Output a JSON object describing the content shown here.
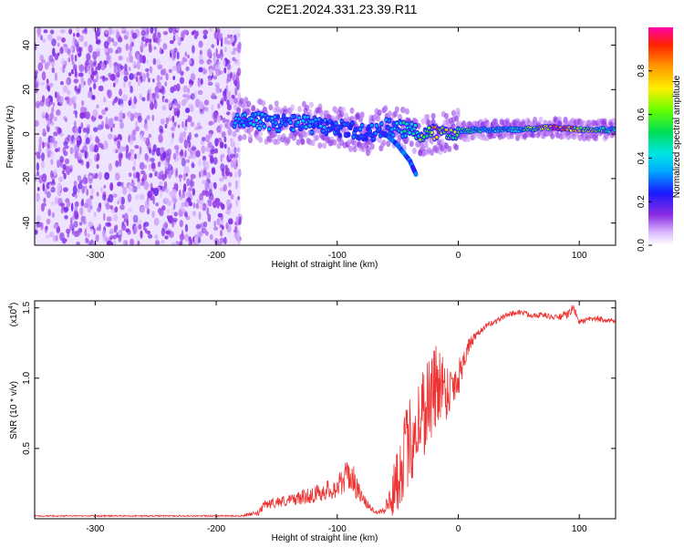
{
  "title": "C2E1.2024.331.23.39.R11",
  "chart_data": [
    {
      "type": "heatmap",
      "xlabel": "Height of straight line (km)",
      "ylabel": "Frequency (Hz)",
      "xlim": [
        -350,
        130
      ],
      "ylim": [
        -50,
        48
      ],
      "xticks": [
        -300,
        -200,
        -100,
        0,
        100
      ],
      "yticks": [
        -40,
        -20,
        0,
        20,
        40
      ],
      "xtick_labels": [
        "-300",
        "-200",
        "-100",
        "0",
        "100"
      ],
      "ytick_labels": [
        "-40",
        "-20",
        "0",
        "20",
        "40"
      ],
      "colorbar": {
        "label": "Normalized spectral amplitude",
        "range": [
          0.0,
          1.0
        ],
        "ticks": [
          0.0,
          0.2,
          0.4,
          0.6,
          0.8
        ],
        "tick_labels": [
          "0.0",
          "0.2",
          "0.4",
          "0.6",
          "0.8"
        ]
      },
      "noise_region": {
        "x": [
          -350,
          -180
        ],
        "y": [
          -50,
          48
        ],
        "amplitude": 0.15
      },
      "ridge": [
        {
          "x": -185,
          "y": 7,
          "amp": 0.35
        },
        {
          "x": -170,
          "y": 6,
          "amp": 0.4
        },
        {
          "x": -150,
          "y": 5,
          "amp": 0.35
        },
        {
          "x": -130,
          "y": 5,
          "amp": 0.35
        },
        {
          "x": -110,
          "y": 3,
          "amp": 0.35
        },
        {
          "x": -90,
          "y": 2,
          "amp": 0.3
        },
        {
          "x": -75,
          "y": 0,
          "amp": 0.3
        },
        {
          "x": -60,
          "y": 3,
          "amp": 0.35
        },
        {
          "x": -45,
          "y": 2,
          "amp": 0.45
        },
        {
          "x": -30,
          "y": 0,
          "amp": 0.6
        },
        {
          "x": -15,
          "y": 1,
          "amp": 0.85
        },
        {
          "x": 0,
          "y": 1.5,
          "amp": 0.55
        },
        {
          "x": 20,
          "y": 2,
          "amp": 0.45
        },
        {
          "x": 50,
          "y": 2,
          "amp": 0.45
        },
        {
          "x": 80,
          "y": 3,
          "amp": 0.9
        },
        {
          "x": 100,
          "y": 2,
          "amp": 0.8
        },
        {
          "x": 130,
          "y": 2,
          "amp": 0.45
        }
      ],
      "branch": [
        {
          "x": -60,
          "y": 0
        },
        {
          "x": -50,
          "y": -5
        },
        {
          "x": -40,
          "y": -12
        },
        {
          "x": -35,
          "y": -18
        }
      ]
    },
    {
      "type": "line",
      "xlabel": "Height of straight line (km)",
      "ylabel": "SNR (10 * v/v)",
      "y_multiplier": "(x10",
      "y_multiplier_exp": "4",
      "y_multiplier_close": ")",
      "xlim": [
        -350,
        130
      ],
      "ylim": [
        0,
        1.55
      ],
      "xticks": [
        -300,
        -200,
        -100,
        0,
        100
      ],
      "yticks": [
        0.5,
        1.0,
        1.5
      ],
      "xtick_labels": [
        "-300",
        "-200",
        "-100",
        "0",
        "100"
      ],
      "ytick_labels": [
        "0.5",
        "1.0",
        "1.5"
      ],
      "series": [
        {
          "color": "#ee3333",
          "x": [
            -350,
            -250,
            -180,
            -165,
            -160,
            -150,
            -140,
            -130,
            -120,
            -110,
            -100,
            -95,
            -90,
            -85,
            -80,
            -75,
            -70,
            -65,
            -60,
            -55,
            -50,
            -45,
            -40,
            -35,
            -30,
            -25,
            -20,
            -15,
            -10,
            -5,
            0,
            5,
            10,
            15,
            20,
            25,
            30,
            40,
            50,
            60,
            70,
            80,
            90,
            95,
            100,
            110,
            120,
            130
          ],
          "y": [
            0.02,
            0.02,
            0.02,
            0.04,
            0.1,
            0.12,
            0.13,
            0.15,
            0.17,
            0.2,
            0.22,
            0.28,
            0.32,
            0.25,
            0.15,
            0.1,
            0.06,
            0.05,
            0.08,
            0.15,
            0.3,
            0.45,
            0.55,
            0.65,
            0.75,
            0.85,
            0.9,
            1.0,
            0.9,
            0.95,
            1.0,
            1.15,
            1.25,
            1.3,
            1.35,
            1.38,
            1.4,
            1.45,
            1.47,
            1.45,
            1.45,
            1.43,
            1.45,
            1.5,
            1.4,
            1.42,
            1.42,
            1.4
          ],
          "noise": [
            0.005,
            0.005,
            0.005,
            0.02,
            0.03,
            0.04,
            0.04,
            0.05,
            0.06,
            0.07,
            0.08,
            0.1,
            0.12,
            0.1,
            0.05,
            0.03,
            0.02,
            0.02,
            0.05,
            0.15,
            0.25,
            0.3,
            0.32,
            0.35,
            0.35,
            0.35,
            0.35,
            0.3,
            0.2,
            0.18,
            0.15,
            0.08,
            0.05,
            0.03,
            0.02,
            0.02,
            0.02,
            0.02,
            0.02,
            0.02,
            0.02,
            0.02,
            0.03,
            0.03,
            0.02,
            0.02,
            0.02,
            0.02
          ]
        }
      ]
    }
  ]
}
